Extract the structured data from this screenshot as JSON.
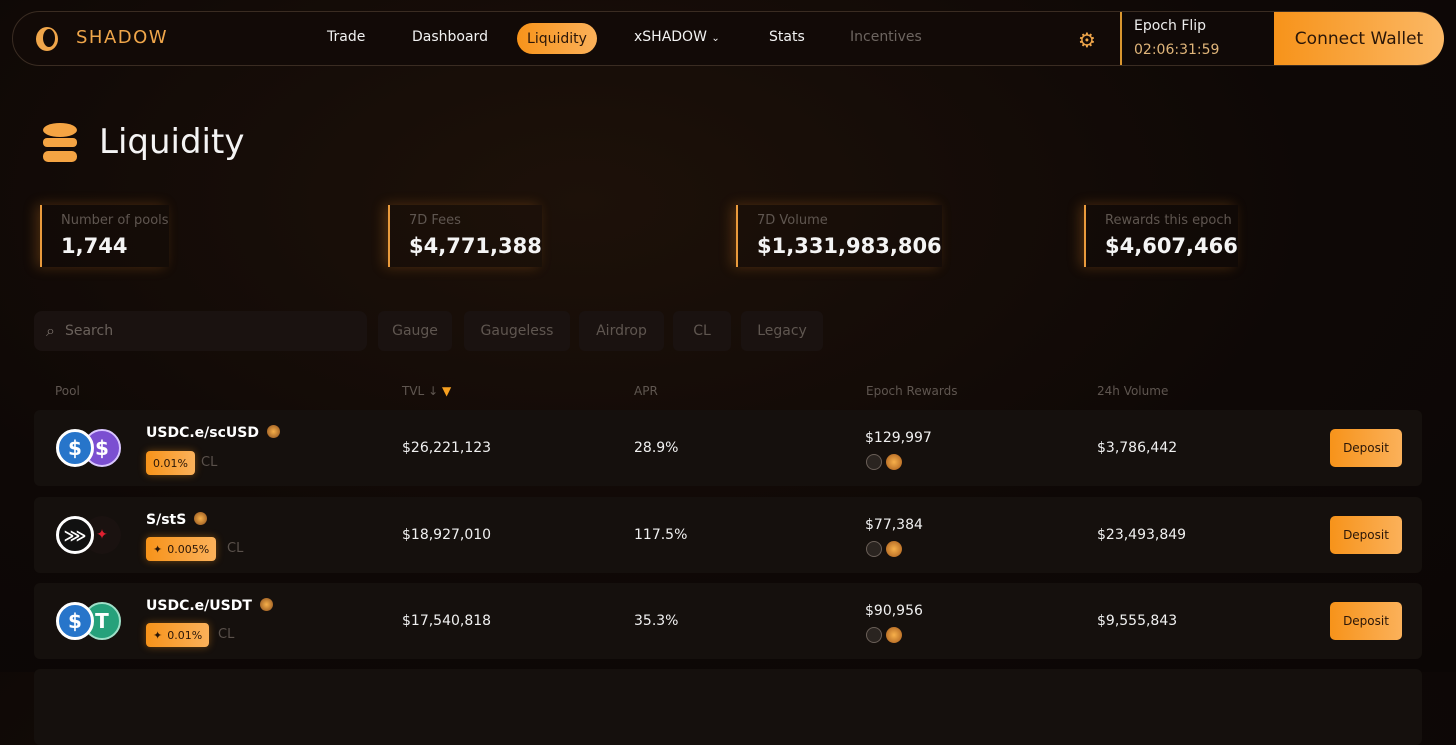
{
  "nav": {
    "brand": "SHADOW",
    "items": [
      "Trade",
      "Dashboard",
      "Liquidity",
      "xSHADOW",
      "Stats",
      "Incentives"
    ],
    "active": "Liquidity",
    "epoch_label": "Epoch Flip",
    "epoch_time": "02:06:31:59",
    "connect": "Connect Wallet"
  },
  "page": {
    "title": "Liquidity"
  },
  "stats": [
    {
      "label": "Number of pools",
      "value": "1,744"
    },
    {
      "label": "7D Fees",
      "value": "$4,771,388"
    },
    {
      "label": "7D Volume",
      "value": "$1,331,983,806"
    },
    {
      "label": "Rewards this epoch",
      "value": "$4,607,466"
    }
  ],
  "search": {
    "placeholder": "Search"
  },
  "filters": [
    "Gauge",
    "Gaugeless",
    "Airdrop",
    "CL",
    "Legacy"
  ],
  "table": {
    "headers": {
      "pool": "Pool",
      "tvl": "TVL",
      "sort": "↓",
      "apr": "APR",
      "rewards": "Epoch Rewards",
      "volume": "24h Volume"
    },
    "rows": [
      {
        "pool": "USDC.e/scUSD",
        "fee": "0.01%",
        "type": "CL",
        "tvl": "$26,221,123",
        "apr": "28.9%",
        "rewards": "$129,997",
        "volume": "$3,786,442",
        "action": "Deposit"
      },
      {
        "pool": "S/stS",
        "fee": "0.005%",
        "type": "CL",
        "tvl": "$18,927,010",
        "apr": "117.5%",
        "rewards": "$77,384",
        "volume": "$23,493,849",
        "action": "Deposit"
      },
      {
        "pool": "USDC.e/USDT",
        "fee": "0.01%",
        "type": "CL",
        "tvl": "$17,540,818",
        "apr": "35.3%",
        "rewards": "$90,956",
        "volume": "$9,555,843",
        "action": "Deposit"
      }
    ]
  },
  "colors": {
    "accent": "#f7931a",
    "background": "#0e0806"
  }
}
